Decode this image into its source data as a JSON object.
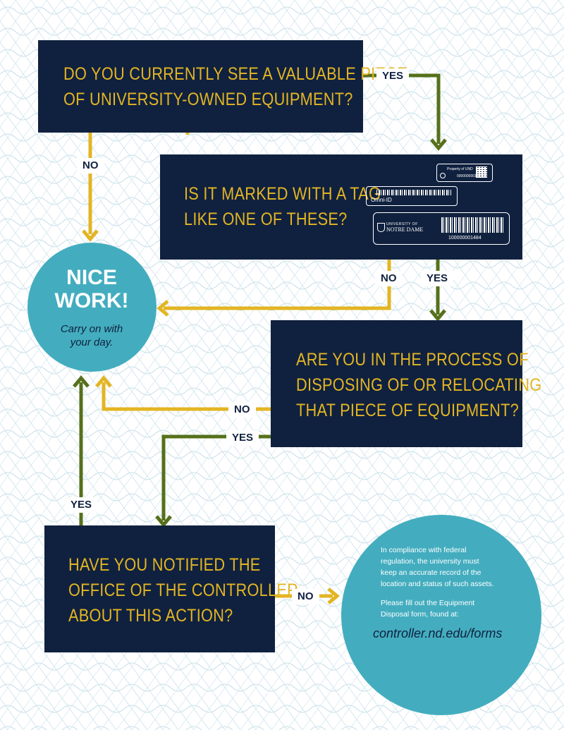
{
  "questions": {
    "q1": [
      "DO YOU CURRENTLY SEE A VALUABLE PIECE",
      "OF UNIVERSITY-OWNED EQUIPMENT?"
    ],
    "q2": [
      "IS IT MARKED WITH A TAG",
      "LIKE ONE OF THESE?"
    ],
    "q3": [
      "ARE YOU IN THE PROCESS OF",
      "DISPOSING OF OR RELOCATING",
      "THAT PIECE OF EQUIPMENT?"
    ],
    "q4": [
      "HAVE YOU NOTIFIED THE",
      "OFFICE OF THE CONTROLLER",
      "ABOUT THIS ACTION?"
    ]
  },
  "labels": {
    "q1_yes": "YES",
    "q1_no": "NO",
    "q2_no": "NO",
    "q2_yes": "YES",
    "q3_no": "NO",
    "q3_yes": "YES",
    "q4_yes": "YES",
    "q4_no": "NO"
  },
  "nice": {
    "title": [
      "NICE",
      "WORK!"
    ],
    "subtitle": [
      "Carry on with",
      "your day."
    ]
  },
  "info": {
    "paragraph1": [
      "In compliance with federal",
      "regulation, the university must",
      "keep an accurate record of the",
      "location and status of such assets."
    ],
    "paragraph2": [
      "Please fill out the  Equipment",
      "Disposal form, found at:"
    ],
    "link": "controller.nd.edu/forms"
  },
  "tags": {
    "tag1_text": "Property of UND",
    "tag1_number": "00000000015",
    "tag2_brand": "Omni-ID",
    "tag3_brand_small": "UNIVERSITY OF",
    "tag3_brand": "NOTRE DAME",
    "tag3_number": "100000001484"
  },
  "colors": {
    "navy": "#10213f",
    "gold": "#e3b523",
    "olive": "#56701b",
    "teal": "#43adbf"
  }
}
